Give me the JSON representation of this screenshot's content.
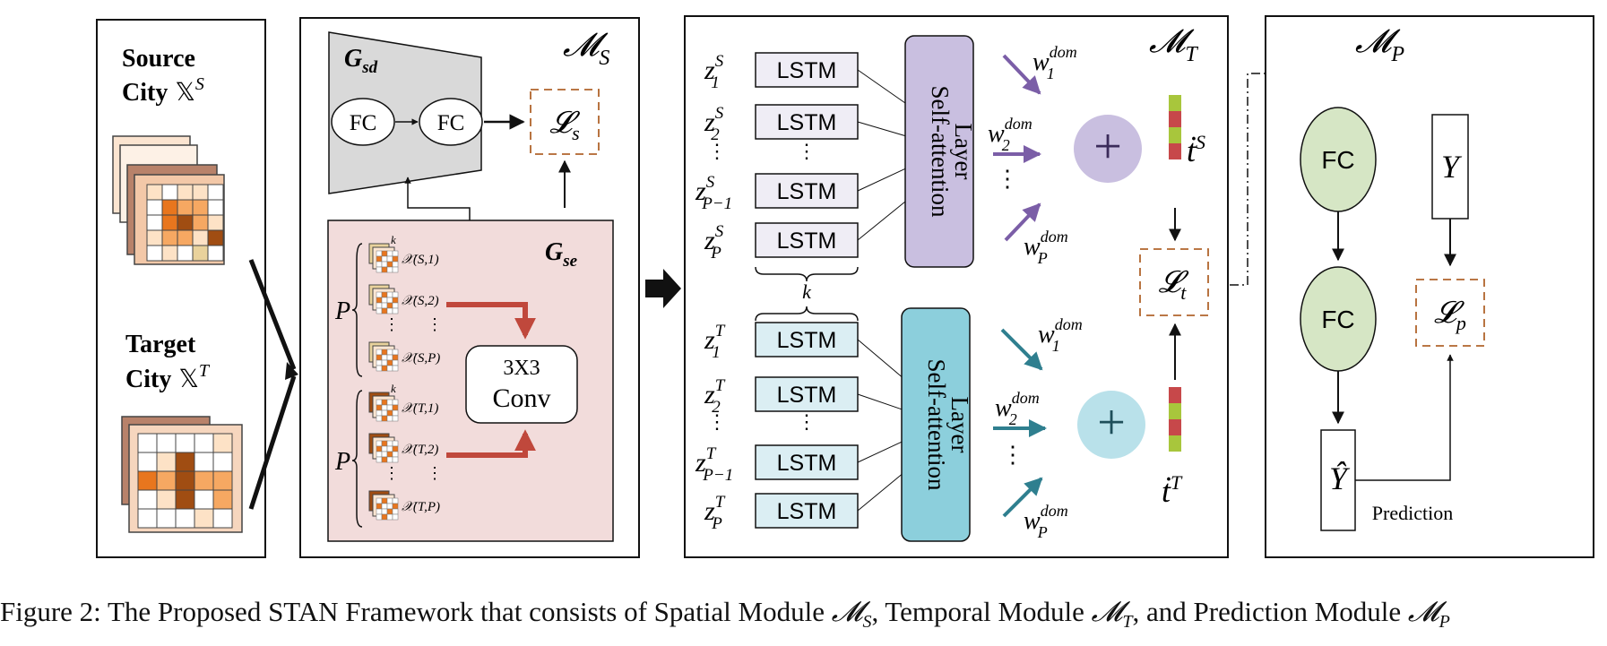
{
  "input_panel": {
    "source_line1": "Source",
    "source_line2": "City",
    "source_symbol": "𝕏",
    "source_sup": "S",
    "target_line1": "Target",
    "target_line2": "City",
    "target_symbol": "𝕏",
    "target_sup": "T",
    "heat_colors": {
      "light": "#fde2c6",
      "mid": "#f6a862",
      "orange": "#e8761e",
      "dark": "#a04d12",
      "tan": "#e9d29c"
    }
  },
  "spatial_module": {
    "title": "𝓜",
    "title_sub": "S",
    "decoder_label": "G",
    "decoder_sub": "sd",
    "fc1": "FC",
    "fc2": "FC",
    "loss": "𝓛",
    "loss_sub": "s",
    "encoder_label": "G",
    "encoder_sub": "se",
    "conv_line1": "3X3",
    "conv_line2": "Conv",
    "p_label": "P",
    "k_label": "k",
    "source_items": [
      "𝒳(S,1)",
      "𝒳(S,2)",
      "⋮",
      "𝒳(S,P)"
    ],
    "target_items": [
      "𝒳(T,1)",
      "𝒳(T,2)",
      "⋮",
      "𝒳(T,P)"
    ],
    "vdots": "⋮"
  },
  "temporal_module": {
    "title": "𝓜",
    "title_sub": "T",
    "lstm": "LSTM",
    "attention_line1": "Self-attention",
    "attention_line2": "Layer",
    "source_inputs": [
      {
        "base": "z",
        "sub": "1",
        "sup": "S"
      },
      {
        "base": "z",
        "sub": "2",
        "sup": "S"
      },
      {
        "base": "z",
        "sub": "P−1",
        "sup": "S"
      },
      {
        "base": "z",
        "sub": "P",
        "sup": "S"
      }
    ],
    "target_inputs": [
      {
        "base": "z",
        "sub": "1",
        "sup": "T"
      },
      {
        "base": "z",
        "sub": "2",
        "sup": "T"
      },
      {
        "base": "z",
        "sub": "P−1",
        "sup": "T"
      },
      {
        "base": "z",
        "sub": "P",
        "sup": "T"
      }
    ],
    "weights": [
      {
        "base": "w",
        "sub": "1",
        "sup": "dom"
      },
      {
        "base": "w",
        "sub": "2",
        "sup": "dom"
      },
      {
        "base": "w",
        "sub": "P",
        "sup": "dom"
      }
    ],
    "plus": "+",
    "k_label": "k",
    "t_source": "ṫ",
    "t_source_sup": "S",
    "t_target": "ṫ",
    "t_target_sup": "T",
    "loss": "𝓛",
    "loss_sub": "t",
    "vdots": "⋮",
    "colors": {
      "source_lstm": "#efedf5",
      "target_lstm": "#dbeef3",
      "source_attn": "#c9bfe0",
      "target_attn": "#8ccfdc",
      "source_arrow": "#7b5ea7",
      "target_arrow": "#2f7f8f"
    }
  },
  "prediction_module": {
    "title": "𝓜",
    "title_sub": "P",
    "fc1": "FC",
    "fc2": "FC",
    "y": "Y",
    "y_hat": "Ŷ",
    "loss": "𝓛",
    "loss_sub": "p",
    "prediction_label": "Prediction",
    "fc_color": "#d6e6c5"
  },
  "caption": {
    "text": "Figure 2: The Proposed STAN Framework that consists of Spatial Module ",
    "ms": "𝓜",
    "ms_sub": "S",
    "mid1": ", Temporal Module ",
    "mt": "𝓜",
    "mt_sub": "T",
    "mid2": ", and Prediction Module ",
    "mp": "𝓜",
    "mp_sub": "P"
  }
}
